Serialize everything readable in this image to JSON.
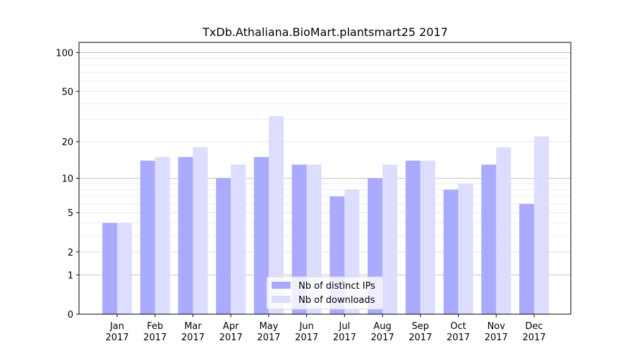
{
  "chart_data": {
    "type": "bar",
    "title": "TxDb.Athaliana.BioMart.plantsmart25 2017",
    "xlabel": "",
    "ylabel": "",
    "yscale": "log(1+y)",
    "ylim": [
      0,
      120
    ],
    "yticks": [
      0,
      1,
      2,
      5,
      10,
      20,
      50,
      100
    ],
    "categories": [
      "Jan\n2017",
      "Feb\n2017",
      "Mar\n2017",
      "Apr\n2017",
      "May\n2017",
      "Jun\n2017",
      "Jul\n2017",
      "Aug\n2017",
      "Sep\n2017",
      "Oct\n2017",
      "Nov\n2017",
      "Dec\n2017"
    ],
    "series": [
      {
        "name": "Nb of distinct IPs",
        "color": "#aaaaff",
        "values": [
          4,
          14,
          15,
          10,
          15,
          13,
          7,
          10,
          14,
          8,
          13,
          6
        ]
      },
      {
        "name": "Nb of downloads",
        "color": "#ddddff",
        "values": [
          4,
          15,
          18,
          13,
          32,
          13,
          8,
          13,
          14,
          9,
          18,
          22
        ]
      }
    ],
    "grid": true,
    "legend": "bottom-center"
  }
}
